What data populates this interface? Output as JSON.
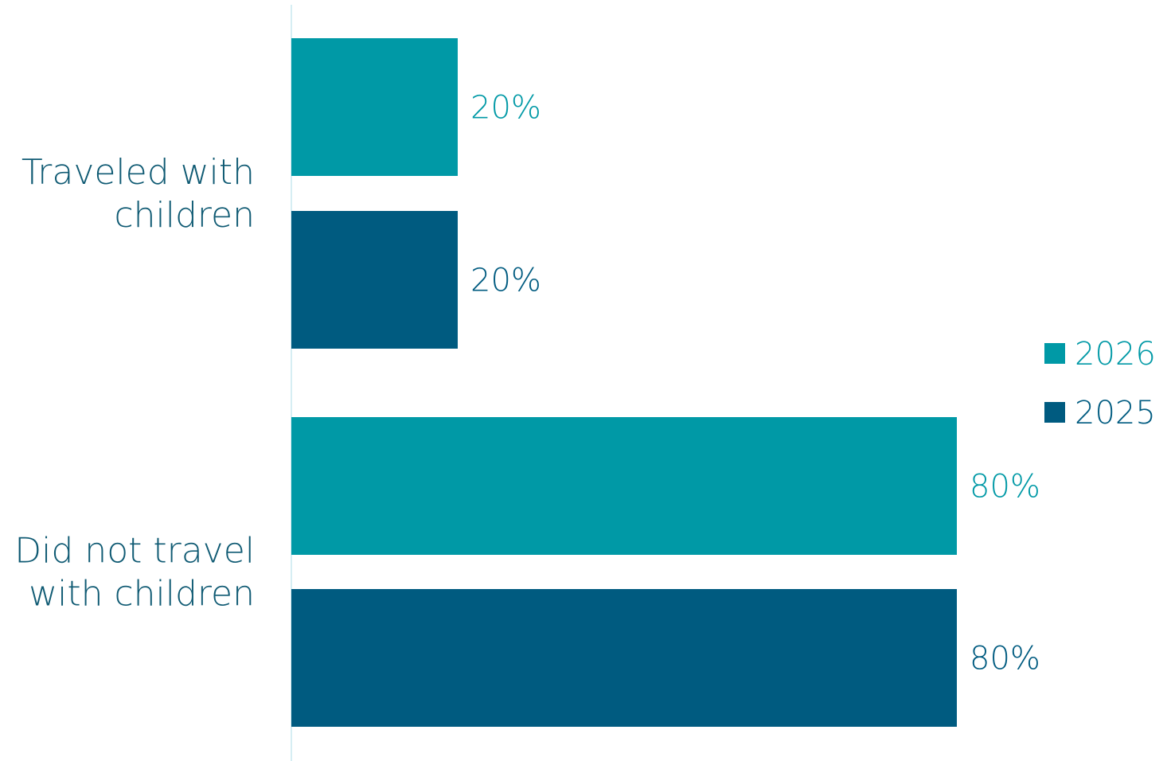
{
  "chart_data": {
    "type": "bar",
    "orientation": "horizontal",
    "categories": [
      [
        "Traveled with",
        "children"
      ],
      [
        "Did not travel",
        "with children"
      ]
    ],
    "series": [
      {
        "name": "2026",
        "color": "#0099A6",
        "values": [
          20,
          80
        ],
        "labels": [
          "20%",
          "80%"
        ]
      },
      {
        "name": "2025",
        "color": "#005B80",
        "values": [
          20,
          80
        ],
        "labels": [
          "20%",
          "80%"
        ]
      }
    ],
    "xlim": [
      0,
      100
    ],
    "grid": false,
    "legend_position": "right",
    "axis_color": "#D6EEF3",
    "label_color": "#0F5A73"
  }
}
